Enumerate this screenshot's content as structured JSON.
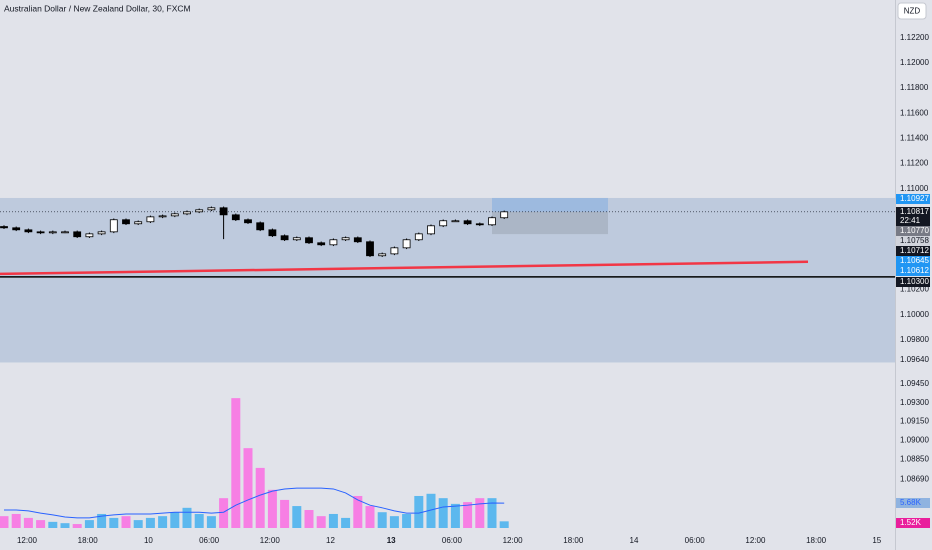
{
  "chart_data": {
    "type": "candlestick",
    "title": "Australian Dollar / New Zealand Dollar, 30, FXCM",
    "currency": "NZD",
    "ylim": [
      1.0813,
      1.125
    ],
    "yticks": [
      {
        "value": 1.122,
        "label": "1.12200"
      },
      {
        "value": 1.12,
        "label": "1.12000"
      },
      {
        "value": 1.118,
        "label": "1.11800"
      },
      {
        "value": 1.116,
        "label": "1.11600"
      },
      {
        "value": 1.114,
        "label": "1.11400"
      },
      {
        "value": 1.112,
        "label": "1.11200"
      },
      {
        "value": 1.11,
        "label": "1.11000"
      },
      {
        "value": 1.102,
        "label": "1.10200"
      },
      {
        "value": 1.1,
        "label": "1.10000"
      },
      {
        "value": 1.098,
        "label": "1.09800"
      },
      {
        "value": 1.0964,
        "label": "1.09640"
      },
      {
        "value": 1.0945,
        "label": "1.09450"
      },
      {
        "value": 1.093,
        "label": "1.09300"
      },
      {
        "value": 1.0915,
        "label": "1.09150"
      },
      {
        "value": 1.09,
        "label": "1.09000"
      },
      {
        "value": 1.0885,
        "label": "1.08850"
      },
      {
        "value": 1.0869,
        "label": "1.08690"
      }
    ],
    "time_labels": [
      "12:00",
      "18:00",
      "10",
      "06:00",
      "12:00",
      "12",
      "13",
      "06:00",
      "12:00",
      "18:00",
      "14",
      "06:00",
      "12:00",
      "18:00",
      "15"
    ],
    "candles": {
      "open": [
        1.107,
        1.1069,
        1.10674,
        1.10658,
        1.1065,
        1.10658,
        1.10658,
        1.10619,
        1.10642,
        1.10658,
        1.10754,
        1.10722,
        1.10738,
        1.10777,
        1.10785,
        1.10801,
        1.10817,
        1.10833,
        1.10849,
        1.10793,
        1.10754,
        1.1073,
        1.10674,
        1.10627,
        1.10595,
        1.10611,
        1.10571,
        1.10555,
        1.10595,
        1.10611,
        1.10579,
        1.10468,
        1.10483,
        1.10531,
        1.10595,
        1.10642,
        1.10706,
        1.10746,
        1.10746,
        1.10722,
        1.10714,
        1.1077
      ],
      "high": [
        1.1071,
        1.107,
        1.10684,
        1.10668,
        1.10668,
        1.10668,
        1.10668,
        1.10652,
        1.10668,
        1.10764,
        1.10764,
        1.10748,
        1.10787,
        1.10795,
        1.10811,
        1.10827,
        1.10843,
        1.10859,
        1.10859,
        1.10803,
        1.10764,
        1.1074,
        1.10684,
        1.10637,
        1.10621,
        1.10621,
        1.10581,
        1.10605,
        1.10621,
        1.10621,
        1.10589,
        1.10493,
        1.10541,
        1.10605,
        1.10652,
        1.10716,
        1.10756,
        1.10756,
        1.10756,
        1.10732,
        1.1078,
        1.10827
      ],
      "low": [
        1.1068,
        1.10664,
        1.10648,
        1.1064,
        1.1064,
        1.10648,
        1.10609,
        1.10609,
        1.10632,
        1.10648,
        1.10712,
        1.10712,
        1.10728,
        1.10767,
        1.10775,
        1.10791,
        1.10807,
        1.10823,
        1.106,
        1.10744,
        1.1072,
        1.10664,
        1.10617,
        1.10585,
        1.10585,
        1.10561,
        1.10545,
        1.10545,
        1.10585,
        1.10569,
        1.10458,
        1.10458,
        1.10473,
        1.10521,
        1.10585,
        1.10632,
        1.10696,
        1.10736,
        1.10712,
        1.10704,
        1.10704,
        1.1076
      ],
      "close": [
        1.1069,
        1.10674,
        1.10658,
        1.1065,
        1.10658,
        1.10658,
        1.10619,
        1.10642,
        1.10658,
        1.10754,
        1.10722,
        1.10738,
        1.10777,
        1.10785,
        1.10801,
        1.10817,
        1.10833,
        1.10849,
        1.10793,
        1.10754,
        1.1073,
        1.10674,
        1.10627,
        1.10595,
        1.10611,
        1.10571,
        1.10555,
        1.10595,
        1.10611,
        1.10579,
        1.10468,
        1.10483,
        1.10531,
        1.10595,
        1.10642,
        1.10706,
        1.10746,
        1.10746,
        1.10722,
        1.10714,
        1.1077,
        1.10817
      ]
    },
    "up_color": "#ffffff",
    "down_color": "#000000",
    "zone": [
      1.10927,
      1.0962
    ],
    "zone_color": "#b2c2d8",
    "support": 1.103,
    "red_line": [
      1.10324,
      1.1042
    ],
    "red_color": "#f23645",
    "position": {
      "target": 1.10927,
      "entry": 1.10817,
      "stop": 1.1064
    },
    "axis_markers": [
      {
        "label": "1.10927",
        "color": "#2196f3"
      },
      {
        "label": "1.10817",
        "color": "#131722"
      },
      {
        "label": "1.10770",
        "color": "#787b86"
      },
      {
        "label": "1.10758",
        "color": "#d1d4dc"
      },
      {
        "label": "1.10712",
        "color": "#131722"
      },
      {
        "label": "1.10645",
        "color": "#2196f3"
      },
      {
        "label": "1.10612",
        "color": "#2196f3"
      },
      {
        "label": "1.10300",
        "color": "#131722"
      }
    ],
    "countdown": "22:41",
    "volume": {
      "vlim": [
        0,
        31000
      ],
      "up_color": "#5cb8ee",
      "down_color": "#f77fe4",
      "values": [
        2700,
        3200,
        2300,
        1800,
        1400,
        1100,
        900,
        1800,
        3200,
        2300,
        2700,
        1800,
        2300,
        2700,
        3600,
        4600,
        3200,
        2700,
        6800,
        29600,
        18200,
        13700,
        8700,
        6400,
        5000,
        4100,
        2700,
        3200,
        2300,
        7300,
        5000,
        3600,
        2700,
        3200,
        7300,
        7800,
        6800,
        5500,
        5900,
        6800,
        6800,
        1520
      ],
      "value_label": "1.52K",
      "ma_color": "#2962ff",
      "ma": [
        4100,
        4100,
        3900,
        3400,
        3000,
        2500,
        2300,
        2300,
        2700,
        3000,
        3200,
        3200,
        3200,
        3400,
        3600,
        3600,
        3600,
        3400,
        3600,
        5200,
        6400,
        7500,
        8400,
        8900,
        9100,
        9100,
        9100,
        8900,
        8000,
        6400,
        5200,
        4600,
        3900,
        3400,
        3400,
        4100,
        4800,
        5000,
        5200,
        5500,
        5700,
        5680
      ],
      "ma_label": "5.68K"
    }
  }
}
